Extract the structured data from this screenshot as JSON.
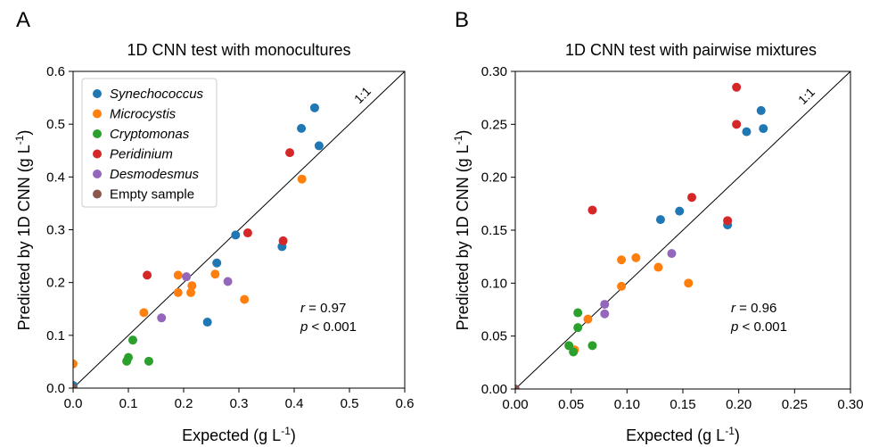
{
  "colors": {
    "Synechococcus": "#1f77b4",
    "Microcystis": "#ff7f0e",
    "Cryptomonas": "#2ca02c",
    "Peridinium": "#d62728",
    "Desmodesmus": "#9467bd",
    "Empty sample": "#8c564b"
  },
  "chart_data": [
    {
      "type": "scatter",
      "panel": "A",
      "title": "1D CNN test with monocultures",
      "xlabel": "Expected (g L-1)",
      "ylabel": "Predicted by 1D CNN (g L-1)",
      "xlim": [
        0,
        0.6
      ],
      "ylim": [
        0,
        0.6
      ],
      "xticks": [
        "0.0",
        "0.1",
        "0.2",
        "0.3",
        "0.4",
        "0.5",
        "0.6"
      ],
      "yticks": [
        "0.0",
        "0.1",
        "0.2",
        "0.3",
        "0.4",
        "0.5",
        "0.6"
      ],
      "identity_line_label": "1:1",
      "legend": {
        "placement": "top-left",
        "entries": [
          "Synechococcus",
          "Microcystis",
          "Cryptomonas",
          "Peridinium",
          "Desmodesmus",
          "Empty sample"
        ]
      },
      "stats": {
        "r_label": "r",
        "r_value": " = 0.97",
        "p_label": "p",
        "p_value": " < 0.001"
      },
      "series": [
        {
          "name": "Synechococcus",
          "points": [
            [
              0.0,
              0.005
            ],
            [
              0.243,
              0.125
            ],
            [
              0.26,
              0.237
            ],
            [
              0.294,
              0.29
            ],
            [
              0.378,
              0.268
            ],
            [
              0.413,
              0.492
            ],
            [
              0.437,
              0.531
            ],
            [
              0.445,
              0.459
            ]
          ]
        },
        {
          "name": "Microcystis",
          "points": [
            [
              0.0,
              0.046
            ],
            [
              0.128,
              0.143
            ],
            [
              0.19,
              0.214
            ],
            [
              0.19,
              0.181
            ],
            [
              0.213,
              0.181
            ],
            [
              0.215,
              0.194
            ],
            [
              0.257,
              0.216
            ],
            [
              0.31,
              0.168
            ],
            [
              0.414,
              0.396
            ]
          ]
        },
        {
          "name": "Cryptomonas",
          "points": [
            [
              0.097,
              0.051
            ],
            [
              0.1,
              0.058
            ],
            [
              0.108,
              0.091
            ],
            [
              0.137,
              0.051
            ]
          ]
        },
        {
          "name": "Peridinium",
          "points": [
            [
              0.134,
              0.214
            ],
            [
              0.316,
              0.294
            ],
            [
              0.38,
              0.279
            ],
            [
              0.392,
              0.446
            ]
          ]
        },
        {
          "name": "Desmodesmus",
          "points": [
            [
              0.16,
              0.133
            ],
            [
              0.205,
              0.211
            ],
            [
              0.28,
              0.202
            ]
          ]
        },
        {
          "name": "Empty sample",
          "points": [
            [
              0.0,
              0.0
            ]
          ]
        }
      ]
    },
    {
      "type": "scatter",
      "panel": "B",
      "title": "1D CNN test with pairwise mixtures",
      "xlabel": "Expected (g L-1)",
      "ylabel": "Predicted by 1D CNN (g L-1)",
      "xlim": [
        0,
        0.3
      ],
      "ylim": [
        0,
        0.3
      ],
      "xticks": [
        "0.00",
        "0.05",
        "0.10",
        "0.15",
        "0.20",
        "0.25",
        "0.30"
      ],
      "yticks": [
        "0.00",
        "0.05",
        "0.10",
        "0.15",
        "0.20",
        "0.25",
        "0.30"
      ],
      "identity_line_label": "1:1",
      "stats": {
        "r_label": "r",
        "r_value": " = 0.96",
        "p_label": "p",
        "p_value": " < 0.001"
      },
      "series": [
        {
          "name": "Synechococcus",
          "points": [
            [
              0.13,
              0.16
            ],
            [
              0.147,
              0.168
            ],
            [
              0.19,
              0.155
            ],
            [
              0.207,
              0.243
            ],
            [
              0.22,
              0.263
            ],
            [
              0.222,
              0.246
            ]
          ]
        },
        {
          "name": "Microcystis",
          "points": [
            [
              0.053,
              0.037
            ],
            [
              0.065,
              0.066
            ],
            [
              0.095,
              0.097
            ],
            [
              0.095,
              0.122
            ],
            [
              0.108,
              0.124
            ],
            [
              0.128,
              0.115
            ],
            [
              0.155,
              0.1
            ]
          ]
        },
        {
          "name": "Cryptomonas",
          "points": [
            [
              0.048,
              0.041
            ],
            [
              0.052,
              0.035
            ],
            [
              0.056,
              0.072
            ],
            [
              0.056,
              0.058
            ],
            [
              0.069,
              0.041
            ]
          ]
        },
        {
          "name": "Peridinium",
          "points": [
            [
              0.069,
              0.169
            ],
            [
              0.158,
              0.181
            ],
            [
              0.19,
              0.159
            ],
            [
              0.198,
              0.25
            ],
            [
              0.198,
              0.285
            ]
          ]
        },
        {
          "name": "Desmodesmus",
          "points": [
            [
              0.08,
              0.08
            ],
            [
              0.08,
              0.071
            ],
            [
              0.14,
              0.128
            ]
          ]
        },
        {
          "name": "Empty sample",
          "points": [
            [
              0.0,
              0.0
            ]
          ]
        }
      ]
    }
  ]
}
